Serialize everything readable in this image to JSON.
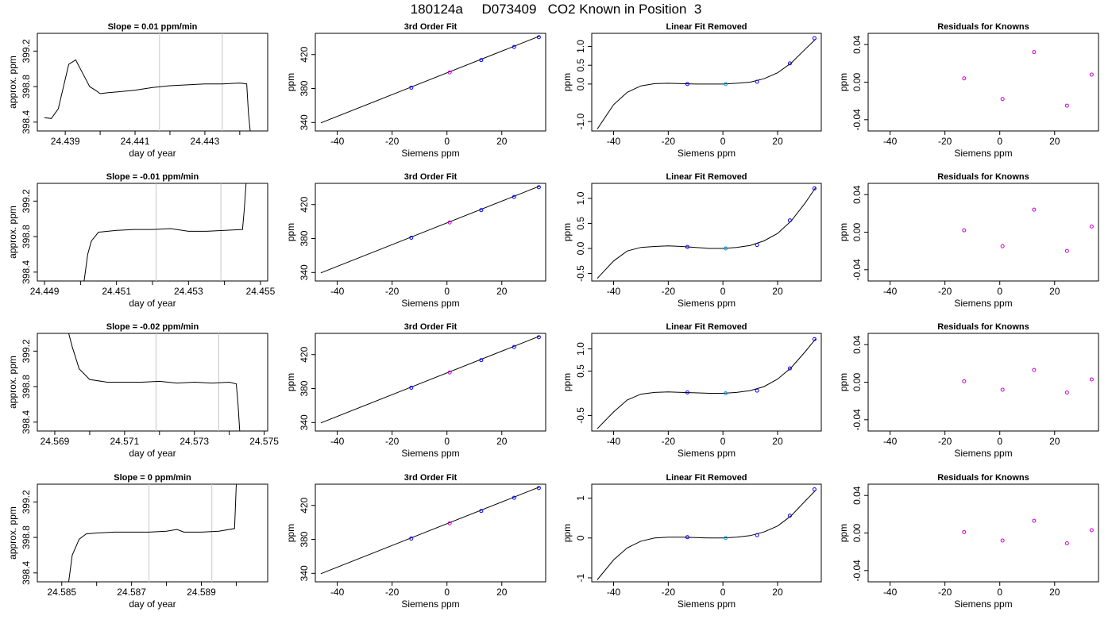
{
  "title": "180124a     D073409   CO2 Known in Position  3",
  "colors": {
    "trace": "#000000",
    "point_blue": "#0000ff",
    "point_violet": "#cc00cc",
    "point_cyan": "#00a0e0",
    "marker_line": "#c8c8c8"
  },
  "chart_data": [
    {
      "type": "line",
      "row": 0,
      "col": 0,
      "title": "Slope =  0.01  ppm/min",
      "xlabel": "day of year",
      "ylabel": "approx. ppm",
      "xlim": [
        24.4382,
        24.4448
      ],
      "ylim": [
        398.3,
        399.4
      ],
      "xticks": [
        24.439,
        24.441,
        24.443
      ],
      "xminor": [
        24.44,
        24.442,
        24.444
      ],
      "yticks": [
        398.4,
        398.8,
        399.2
      ],
      "vlines": [
        24.4417,
        24.4435
      ],
      "series": [
        {
          "x": [
            24.4384,
            24.4386,
            24.4388,
            24.4391,
            24.4393,
            24.4395,
            24.4397,
            24.4399,
            24.44,
            24.4402,
            24.4405,
            24.441,
            24.4415,
            24.442,
            24.4425,
            24.443,
            24.4435,
            24.444,
            24.4442,
            24.44425,
            24.4443
          ],
          "y": [
            398.45,
            398.44,
            398.55,
            399.05,
            399.1,
            398.95,
            398.8,
            398.75,
            398.72,
            398.73,
            398.74,
            398.76,
            398.79,
            398.81,
            398.82,
            398.83,
            398.83,
            398.84,
            398.83,
            398.5,
            398.3
          ]
        }
      ]
    },
    {
      "type": "scatter",
      "row": 0,
      "col": 1,
      "title": "3rd Order Fit",
      "xlabel": "Siemens ppm",
      "ylabel": "ppm",
      "xlim": [
        -48,
        36
      ],
      "ylim": [
        330,
        445
      ],
      "xticks": [
        -40,
        -20,
        0,
        20
      ],
      "yticks": [
        340,
        380,
        420
      ],
      "fit": {
        "x": [
          -46,
          34
        ],
        "y": [
          339.5,
          442
        ]
      },
      "points": {
        "x": [
          -13,
          1,
          12.5,
          24.5,
          33.5
        ],
        "y": [
          381,
          399,
          413.5,
          429,
          440.5
        ],
        "colors": [
          "blue",
          "violet",
          "blue",
          "blue",
          "blue"
        ]
      }
    },
    {
      "type": "scatter",
      "row": 0,
      "col": 2,
      "title": "Linear Fit Removed",
      "xlabel": "Siemens ppm",
      "ylabel": "ppm",
      "xlim": [
        -48,
        36
      ],
      "ylim": [
        -1.25,
        1.35
      ],
      "xticks": [
        -40,
        -20,
        0,
        20
      ],
      "yticks": [
        -1.0,
        0.0,
        0.5,
        1.0
      ],
      "curve": {
        "x": [
          -46,
          -40,
          -35,
          -30,
          -25,
          -20,
          -15,
          -10,
          -5,
          0,
          5,
          10,
          15,
          20,
          25,
          30,
          34
        ],
        "y": [
          -1.2,
          -0.55,
          -0.22,
          -0.05,
          0.01,
          0.02,
          0.01,
          0.0,
          0.0,
          0.0,
          0.02,
          0.05,
          0.14,
          0.3,
          0.56,
          0.92,
          1.2
        ]
      },
      "points": {
        "x": [
          -13,
          1,
          12.5,
          24.5,
          33.5
        ],
        "y": [
          0.0,
          0.0,
          0.06,
          0.55,
          1.22
        ],
        "colors": [
          "blue",
          "cyan",
          "blue",
          "blue",
          "blue"
        ]
      }
    },
    {
      "type": "scatter",
      "row": 0,
      "col": 3,
      "title": "Residuals for Knowns",
      "xlabel": "Siemens ppm",
      "ylabel": "ppm",
      "xlim": [
        -48,
        36
      ],
      "ylim": [
        -0.052,
        0.052
      ],
      "xticks": [
        -40,
        -20,
        0,
        20
      ],
      "yticks": [
        -0.04,
        0.0,
        0.04
      ],
      "points": {
        "x": [
          -13,
          1,
          12.5,
          24.5,
          33.5
        ],
        "y": [
          0.004,
          -0.018,
          0.032,
          -0.025,
          0.008
        ],
        "colors": [
          "violet",
          "violet",
          "violet",
          "violet",
          "violet"
        ]
      }
    },
    {
      "type": "line",
      "row": 1,
      "col": 0,
      "title": "Slope =  -0.01  ppm/min",
      "xlabel": "day of year",
      "ylabel": "approx. ppm",
      "xlim": [
        24.4488,
        24.4552
      ],
      "ylim": [
        398.3,
        399.4
      ],
      "xticks": [
        24.449,
        24.451,
        24.453,
        24.455
      ],
      "xminor": [
        24.45,
        24.452,
        24.454
      ],
      "yticks": [
        398.4,
        398.8,
        399.2
      ],
      "vlines": [
        24.4521,
        24.4539
      ],
      "series": [
        {
          "x": [
            24.4501,
            24.4502,
            24.4503,
            24.4505,
            24.451,
            24.4515,
            24.452,
            24.4525,
            24.453,
            24.4535,
            24.454,
            24.4545,
            24.45455,
            24.4546
          ],
          "y": [
            398.3,
            398.6,
            398.75,
            398.85,
            398.87,
            398.88,
            398.88,
            398.89,
            398.86,
            398.86,
            398.87,
            398.88,
            399.1,
            399.4
          ]
        }
      ]
    },
    {
      "type": "scatter",
      "row": 1,
      "col": 1,
      "title": "3rd Order Fit",
      "xlabel": "Siemens ppm",
      "ylabel": "ppm",
      "xlim": [
        -48,
        36
      ],
      "ylim": [
        330,
        445
      ],
      "xticks": [
        -40,
        -20,
        0,
        20
      ],
      "yticks": [
        340,
        380,
        420
      ],
      "fit": {
        "x": [
          -46,
          34
        ],
        "y": [
          339.5,
          442
        ]
      },
      "points": {
        "x": [
          -13,
          1,
          12.5,
          24.5,
          33.5
        ],
        "y": [
          381,
          399,
          413.5,
          429,
          440.5
        ],
        "colors": [
          "blue",
          "violet",
          "blue",
          "blue",
          "blue"
        ]
      }
    },
    {
      "type": "scatter",
      "row": 1,
      "col": 2,
      "title": "Linear Fit Removed",
      "xlabel": "Siemens ppm",
      "ylabel": "ppm",
      "xlim": [
        -48,
        36
      ],
      "ylim": [
        -0.65,
        1.3
      ],
      "xticks": [
        -40,
        -20,
        0,
        20
      ],
      "yticks": [
        -0.5,
        0.0,
        0.5,
        1.0
      ],
      "curve": {
        "x": [
          -46,
          -40,
          -35,
          -30,
          -25,
          -20,
          -15,
          -10,
          -5,
          0,
          5,
          10,
          15,
          20,
          25,
          30,
          34
        ],
        "y": [
          -0.6,
          -0.25,
          -0.05,
          0.02,
          0.04,
          0.05,
          0.04,
          0.02,
          0.0,
          0.0,
          0.02,
          0.06,
          0.15,
          0.3,
          0.55,
          0.9,
          1.22
        ]
      },
      "points": {
        "x": [
          -13,
          1,
          12.5,
          24.5,
          33.5
        ],
        "y": [
          0.03,
          0.0,
          0.07,
          0.56,
          1.2
        ],
        "colors": [
          "blue",
          "cyan",
          "blue",
          "blue",
          "blue"
        ]
      }
    },
    {
      "type": "scatter",
      "row": 1,
      "col": 3,
      "title": "Residuals for Knowns",
      "xlabel": "Siemens ppm",
      "ylabel": "ppm",
      "xlim": [
        -48,
        36
      ],
      "ylim": [
        -0.052,
        0.052
      ],
      "xticks": [
        -40,
        -20,
        0,
        20
      ],
      "yticks": [
        -0.04,
        0.0,
        0.04
      ],
      "points": {
        "x": [
          -13,
          1,
          12.5,
          24.5,
          33.5
        ],
        "y": [
          0.002,
          -0.015,
          0.024,
          -0.02,
          0.006
        ],
        "colors": [
          "violet",
          "violet",
          "violet",
          "violet",
          "violet"
        ]
      }
    },
    {
      "type": "line",
      "row": 2,
      "col": 0,
      "title": "Slope =  -0.02  ppm/min",
      "xlabel": "day of year",
      "ylabel": "approx. ppm",
      "xlim": [
        24.5685,
        24.5751
      ],
      "ylim": [
        398.3,
        399.4
      ],
      "xticks": [
        24.569,
        24.571,
        24.573,
        24.575
      ],
      "xminor": [
        24.57,
        24.572,
        24.574
      ],
      "yticks": [
        398.4,
        398.8,
        399.2
      ],
      "vlines": [
        24.5719,
        24.5737
      ],
      "series": [
        {
          "x": [
            24.5694,
            24.5695,
            24.5697,
            24.57,
            24.5705,
            24.571,
            24.5715,
            24.572,
            24.5725,
            24.573,
            24.5735,
            24.574,
            24.5742,
            24.57425,
            24.5743
          ],
          "y": [
            399.4,
            399.25,
            399.0,
            398.88,
            398.85,
            398.85,
            398.85,
            398.86,
            398.84,
            398.85,
            398.84,
            398.85,
            398.83,
            398.6,
            398.3
          ]
        }
      ]
    },
    {
      "type": "scatter",
      "row": 2,
      "col": 1,
      "title": "3rd Order Fit",
      "xlabel": "Siemens ppm",
      "ylabel": "ppm",
      "xlim": [
        -48,
        36
      ],
      "ylim": [
        330,
        445
      ],
      "xticks": [
        -40,
        -20,
        0,
        20
      ],
      "yticks": [
        340,
        380,
        420
      ],
      "fit": {
        "x": [
          -46,
          34
        ],
        "y": [
          339.5,
          442
        ]
      },
      "points": {
        "x": [
          -13,
          1,
          12.5,
          24.5,
          33.5
        ],
        "y": [
          381,
          399,
          413.5,
          429,
          440.5
        ],
        "colors": [
          "blue",
          "violet",
          "blue",
          "blue",
          "blue"
        ]
      }
    },
    {
      "type": "scatter",
      "row": 2,
      "col": 2,
      "title": "Linear Fit Removed",
      "xlabel": "Siemens ppm",
      "ylabel": "ppm",
      "xlim": [
        -48,
        36
      ],
      "ylim": [
        -0.85,
        1.35
      ],
      "xticks": [
        -40,
        -20,
        0,
        20
      ],
      "yticks": [
        -0.5,
        0.5,
        1.0
      ],
      "curve": {
        "x": [
          -46,
          -40,
          -35,
          -30,
          -25,
          -20,
          -15,
          -10,
          -5,
          0,
          5,
          10,
          15,
          20,
          25,
          30,
          34
        ],
        "y": [
          -0.8,
          -0.42,
          -0.15,
          -0.02,
          0.02,
          0.03,
          0.02,
          0.01,
          0.0,
          0.0,
          0.02,
          0.06,
          0.15,
          0.32,
          0.58,
          0.93,
          1.23
        ]
      },
      "points": {
        "x": [
          -13,
          1,
          12.5,
          24.5,
          33.5
        ],
        "y": [
          0.02,
          0.0,
          0.06,
          0.56,
          1.22
        ],
        "colors": [
          "blue",
          "cyan",
          "blue",
          "blue",
          "blue"
        ]
      }
    },
    {
      "type": "scatter",
      "row": 2,
      "col": 3,
      "title": "Residuals for Knowns",
      "xlabel": "Siemens ppm",
      "ylabel": "ppm",
      "xlim": [
        -48,
        36
      ],
      "ylim": [
        -0.052,
        0.052
      ],
      "xticks": [
        -40,
        -20,
        0,
        20
      ],
      "yticks": [
        -0.04,
        0.0,
        0.04
      ],
      "points": {
        "x": [
          -13,
          1,
          12.5,
          24.5,
          33.5
        ],
        "y": [
          0.001,
          -0.008,
          0.013,
          -0.011,
          0.003
        ],
        "colors": [
          "violet",
          "violet",
          "violet",
          "violet",
          "violet"
        ]
      }
    },
    {
      "type": "line",
      "row": 3,
      "col": 0,
      "title": "Slope =  0  ppm/min",
      "xlabel": "day of year",
      "ylabel": "approx. ppm",
      "xlim": [
        24.5843,
        24.5909
      ],
      "ylim": [
        398.3,
        399.4
      ],
      "xticks": [
        24.585,
        24.587,
        24.589
      ],
      "xminor": [
        24.586,
        24.588,
        24.59
      ],
      "yticks": [
        398.4,
        398.8,
        399.2
      ],
      "vlines": [
        24.5875,
        24.5893
      ],
      "series": [
        {
          "x": [
            24.5852,
            24.5853,
            24.5855,
            24.5857,
            24.586,
            24.5865,
            24.587,
            24.5875,
            24.588,
            24.5883,
            24.5885,
            24.589,
            24.5895,
            24.58995,
            24.59
          ],
          "y": [
            398.3,
            398.6,
            398.78,
            398.84,
            398.85,
            398.86,
            398.86,
            398.86,
            398.87,
            398.89,
            398.86,
            398.86,
            398.87,
            398.9,
            399.4
          ]
        }
      ]
    },
    {
      "type": "scatter",
      "row": 3,
      "col": 1,
      "title": "3rd Order Fit",
      "xlabel": "Siemens ppm",
      "ylabel": "ppm",
      "xlim": [
        -48,
        36
      ],
      "ylim": [
        330,
        445
      ],
      "xticks": [
        -40,
        -20,
        0,
        20
      ],
      "yticks": [
        340,
        380,
        420
      ],
      "fit": {
        "x": [
          -46,
          34
        ],
        "y": [
          339.5,
          442
        ]
      },
      "points": {
        "x": [
          -13,
          1,
          12.5,
          24.5,
          33.5
        ],
        "y": [
          381,
          399,
          413.5,
          429,
          440.5
        ],
        "colors": [
          "blue",
          "violet",
          "blue",
          "blue",
          "blue"
        ]
      }
    },
    {
      "type": "scatter",
      "row": 3,
      "col": 2,
      "title": "Linear Fit Removed",
      "xlabel": "Siemens ppm",
      "ylabel": "ppm",
      "xlim": [
        -48,
        36
      ],
      "ylim": [
        -1.1,
        1.35
      ],
      "xticks": [
        -40,
        -20,
        0,
        20
      ],
      "yticks": [
        -1.0,
        0.0,
        1.0
      ],
      "curve": {
        "x": [
          -46,
          -40,
          -35,
          -30,
          -25,
          -20,
          -15,
          -10,
          -5,
          0,
          5,
          10,
          15,
          20,
          25,
          30,
          34
        ],
        "y": [
          -1.05,
          -0.55,
          -0.25,
          -0.08,
          0.0,
          0.02,
          0.02,
          0.01,
          0.0,
          0.0,
          0.02,
          0.06,
          0.15,
          0.3,
          0.56,
          0.92,
          1.2
        ]
      },
      "points": {
        "x": [
          -13,
          1,
          12.5,
          24.5,
          33.5
        ],
        "y": [
          0.02,
          0.0,
          0.07,
          0.56,
          1.22
        ],
        "colors": [
          "blue",
          "cyan",
          "blue",
          "blue",
          "blue"
        ]
      }
    },
    {
      "type": "scatter",
      "row": 3,
      "col": 3,
      "title": "Residuals for Knowns",
      "xlabel": "Siemens ppm",
      "ylabel": "ppm",
      "xlim": [
        -48,
        36
      ],
      "ylim": [
        -0.052,
        0.052
      ],
      "xticks": [
        -40,
        -20,
        0,
        20
      ],
      "yticks": [
        -0.04,
        0.0,
        0.04
      ],
      "points": {
        "x": [
          -13,
          1,
          12.5,
          24.5,
          33.5
        ],
        "y": [
          0.001,
          -0.008,
          0.013,
          -0.011,
          0.003
        ],
        "colors": [
          "violet",
          "violet",
          "violet",
          "violet",
          "violet"
        ]
      }
    }
  ]
}
